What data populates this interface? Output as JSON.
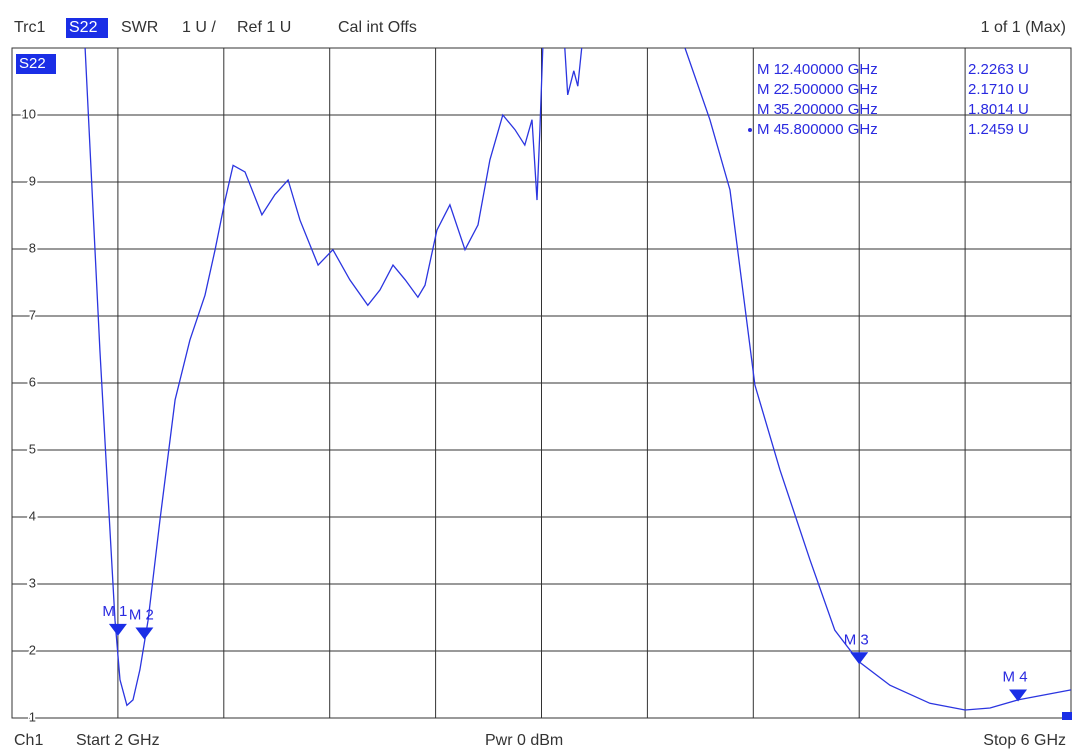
{
  "header": {
    "trace": "Trc1",
    "param": "S22",
    "format": "SWR",
    "scale": "1 U /",
    "ref": "Ref 1 U",
    "cal": "Cal int Offs",
    "page": "1 of 1 (Max)"
  },
  "footer": {
    "channel": "Ch1",
    "start": "Start  2 GHz",
    "power": "Pwr  0 dBm",
    "stop": "Stop  6 GHz"
  },
  "chart_data": {
    "type": "line",
    "x": [
      2.276,
      2.332,
      2.389,
      2.408,
      2.434,
      2.457,
      2.483,
      2.514,
      2.559,
      2.616,
      2.672,
      2.729,
      2.767,
      2.805,
      2.835,
      2.88,
      2.944,
      2.993,
      3.043,
      3.088,
      3.156,
      3.212,
      3.276,
      3.344,
      3.39,
      3.439,
      3.485,
      3.533,
      3.56,
      3.605,
      3.654,
      3.711,
      3.76,
      3.805,
      3.854,
      3.9,
      3.937,
      3.964,
      3.983,
      3.994,
      4.005,
      4.03,
      4.088,
      4.099,
      4.122,
      4.137,
      4.152,
      4.35,
      4.542,
      4.636,
      4.712,
      4.806,
      4.901,
      5.014,
      5.108,
      5.199,
      5.316,
      5.467,
      5.6,
      5.694,
      5.8,
      6.0
    ],
    "series": [
      {
        "name": "S22",
        "color": "#2b35e0",
        "values": [
          11,
          6.49,
          2.46,
          1.57,
          1.19,
          1.27,
          1.72,
          2.46,
          3.96,
          5.75,
          6.64,
          7.31,
          7.99,
          8.73,
          9.25,
          9.15,
          8.51,
          8.81,
          9.03,
          8.43,
          7.76,
          7.99,
          7.54,
          7.16,
          7.39,
          7.76,
          7.54,
          7.28,
          7.46,
          8.28,
          8.66,
          7.99,
          8.36,
          9.33,
          10.0,
          9.78,
          9.55,
          9.93,
          8.73,
          9.78,
          11,
          null,
          11,
          10.3,
          10.66,
          10.43,
          11,
          null,
          11,
          9.93,
          8.88,
          5.97,
          4.7,
          3.36,
          2.31,
          1.84,
          1.49,
          1.22,
          1.12,
          1.15,
          1.27,
          1.42
        ]
      }
    ],
    "xlim": [
      2,
      6
    ],
    "ylim": [
      1,
      11
    ],
    "xticks": [
      2,
      2.4,
      2.8,
      3.2,
      3.6,
      4,
      4.4,
      4.8,
      5.2,
      5.6,
      6
    ],
    "yticks": [
      1,
      2,
      3,
      4,
      5,
      6,
      7,
      8,
      9,
      10
    ],
    "grid": true,
    "markers": [
      {
        "name": "M 1",
        "x": 2.4,
        "x_label": "2.400000 GHz",
        "value": 2.2263,
        "value_label": "2.2263  U"
      },
      {
        "name": "M 2",
        "x": 2.5,
        "x_label": "2.500000 GHz",
        "value": 2.171,
        "value_label": "2.1710  U"
      },
      {
        "name": "M 3",
        "x": 5.2,
        "x_label": "5.200000 GHz",
        "value": 1.8014,
        "value_label": "1.8014  U"
      },
      {
        "name": "M 4",
        "x": 5.8,
        "x_label": "5.800000 GHz",
        "value": 1.2459,
        "value_label": "1.2459  U"
      }
    ]
  }
}
